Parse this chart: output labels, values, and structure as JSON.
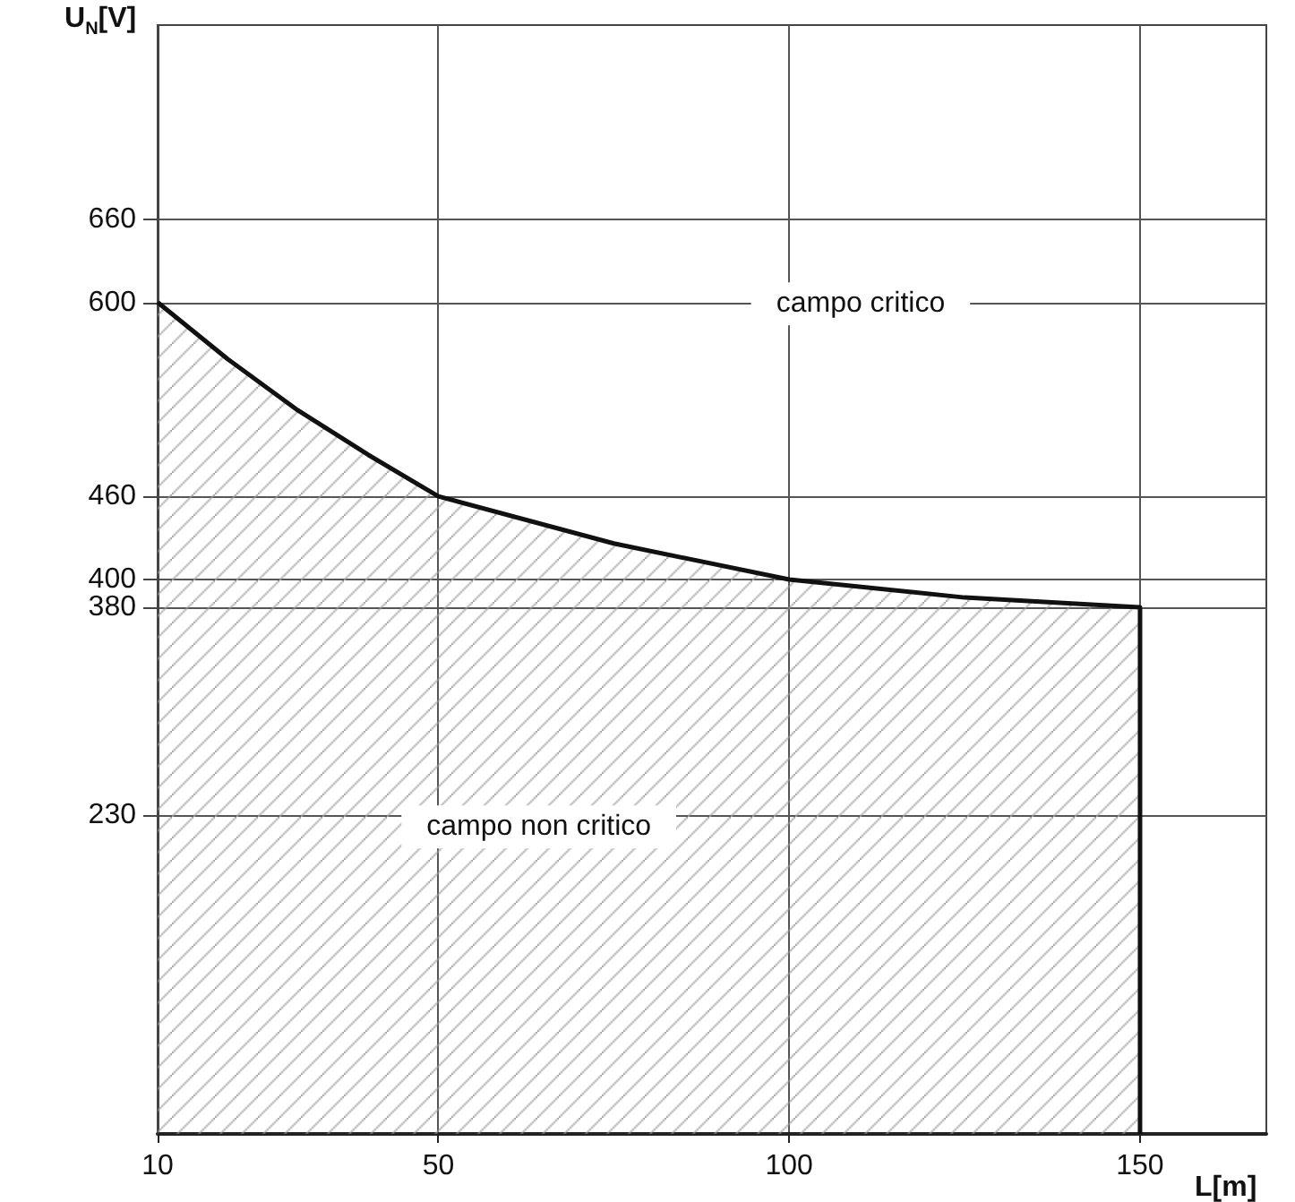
{
  "chart_data": {
    "type": "area",
    "xlabel": "L[m]",
    "ylabel": "U$_{N}$[V]",
    "x": [
      10,
      20,
      30,
      40,
      50,
      75,
      100,
      125,
      150,
      150
    ],
    "series": [
      {
        "color": "#111111",
        "values": [
          600,
          559,
          522,
          490,
          460,
          426,
          400,
          387,
          380,
          0
        ]
      }
    ],
    "xlim": [
      10,
      168
    ],
    "xticks": [
      10,
      50,
      100,
      150
    ],
    "ylim": [
      0,
      800
    ],
    "yticks": [
      230,
      380,
      400,
      460,
      600,
      660
    ],
    "grid": true,
    "marker": "none",
    "annotations": [
      "campo critico",
      "campo non critico"
    ]
  }
}
